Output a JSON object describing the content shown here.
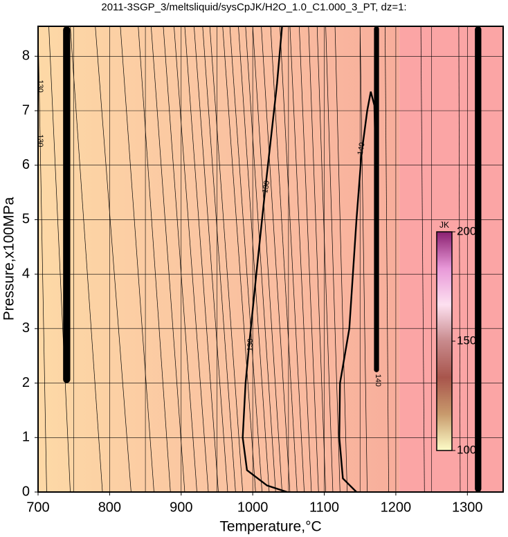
{
  "chart_data": {
    "type": "contour",
    "title": "2011-3SGP_3/meltsliquid/sysCpJK/H2O_1.0_C1.000_3_PT, dz=1:",
    "x_label": "Temperature,°C",
    "y_label": "Pressure,x100MPa",
    "xlim": [
      700,
      1350
    ],
    "ylim": [
      0,
      8.55
    ],
    "xticks": [
      700,
      800,
      900,
      1000,
      1100,
      1200,
      1300
    ],
    "yticks": [
      0,
      1,
      2,
      3,
      4,
      5,
      6,
      7,
      8
    ],
    "xgrid": [
      750,
      850,
      950,
      1050,
      1150,
      1250
    ],
    "grid": true,
    "regions": [
      {
        "x0": 700,
        "x1": 1205,
        "color_start": "#fdd9a6",
        "color_end": "#f8ae9c"
      },
      {
        "x0": 1205,
        "x1": 1350,
        "color_start": "#fba5a5",
        "color_end": "#fba5a5"
      }
    ],
    "thin_contours": [
      [
        712,
        700
      ],
      [
        745,
        715
      ],
      [
        790,
        745
      ],
      [
        830,
        780
      ],
      [
        862,
        815
      ],
      [
        885,
        840
      ],
      [
        905,
        858
      ],
      [
        922,
        875
      ],
      [
        938,
        890
      ],
      [
        952,
        905
      ],
      [
        965,
        918
      ],
      [
        976,
        930
      ],
      [
        986,
        940
      ],
      [
        1004,
        958
      ],
      [
        1013,
        968
      ],
      [
        1023,
        980
      ],
      [
        1032,
        990
      ],
      [
        1041,
        1000
      ],
      [
        1052,
        1012
      ],
      [
        1062,
        1025
      ],
      [
        1072,
        1038
      ],
      [
        1082,
        1052
      ],
      [
        1092,
        1065
      ],
      [
        1102,
        1078
      ],
      [
        1112,
        1090
      ],
      [
        1122,
        1102
      ],
      [
        1132,
        1115
      ],
      [
        1160,
        1150
      ],
      [
        1190,
        1185
      ],
      [
        1240,
        1235
      ],
      [
        1290,
        1288
      ]
    ],
    "bold_contours": [
      {
        "points": [
          [
            1048,
            0
          ],
          [
            1020,
            0.12
          ],
          [
            992,
            0.4
          ],
          [
            986,
            1
          ],
          [
            990,
            2
          ],
          [
            995,
            2.7
          ],
          [
            1005,
            4
          ],
          [
            1017,
            5.5
          ],
          [
            1034,
            7.5
          ],
          [
            1041,
            8.55
          ]
        ]
      },
      {
        "points": [
          [
            1145,
            0
          ],
          [
            1126,
            0.25
          ],
          [
            1121,
            1
          ],
          [
            1122,
            2
          ],
          [
            1135,
            3
          ],
          [
            1145,
            5
          ],
          [
            1152,
            6.2
          ],
          [
            1160,
            7
          ],
          [
            1165,
            7.35
          ],
          [
            1170,
            7.1
          ],
          [
            1172,
            6
          ]
        ]
      }
    ],
    "bands": [
      {
        "x": 740,
        "p0": 2,
        "p1": 8.55,
        "width": 10
      },
      {
        "x": 1173,
        "p0": 2.2,
        "p1": 8.55,
        "width": 7
      },
      {
        "x": 1315,
        "p0": 0,
        "p1": 8.55,
        "width": 9
      }
    ],
    "contour_labels": [
      {
        "text": "130",
        "x": 1019,
        "y": 5.6,
        "angle": -80
      },
      {
        "text": "130",
        "x": 997,
        "y": 2.7,
        "angle": -88
      },
      {
        "text": "140",
        "x": 1152,
        "y": 6.3,
        "angle": -80
      },
      {
        "text": "140",
        "x": 1175,
        "y": 2.05,
        "angle": 90
      },
      {
        "text": "130",
        "x": 703,
        "y": 7.45,
        "angle": 90
      },
      {
        "text": "130",
        "x": 703,
        "y": 6.45,
        "angle": 90
      }
    ],
    "colorbar": {
      "label": "JK",
      "lim": [
        100,
        200
      ],
      "ticks": [
        100,
        150,
        200
      ],
      "colors": [
        "#fdfdc8",
        "#c89a6c",
        "#a8554c",
        "#c88a8c",
        "#fde0f0",
        "#e898d8",
        "#8a2070"
      ]
    }
  }
}
